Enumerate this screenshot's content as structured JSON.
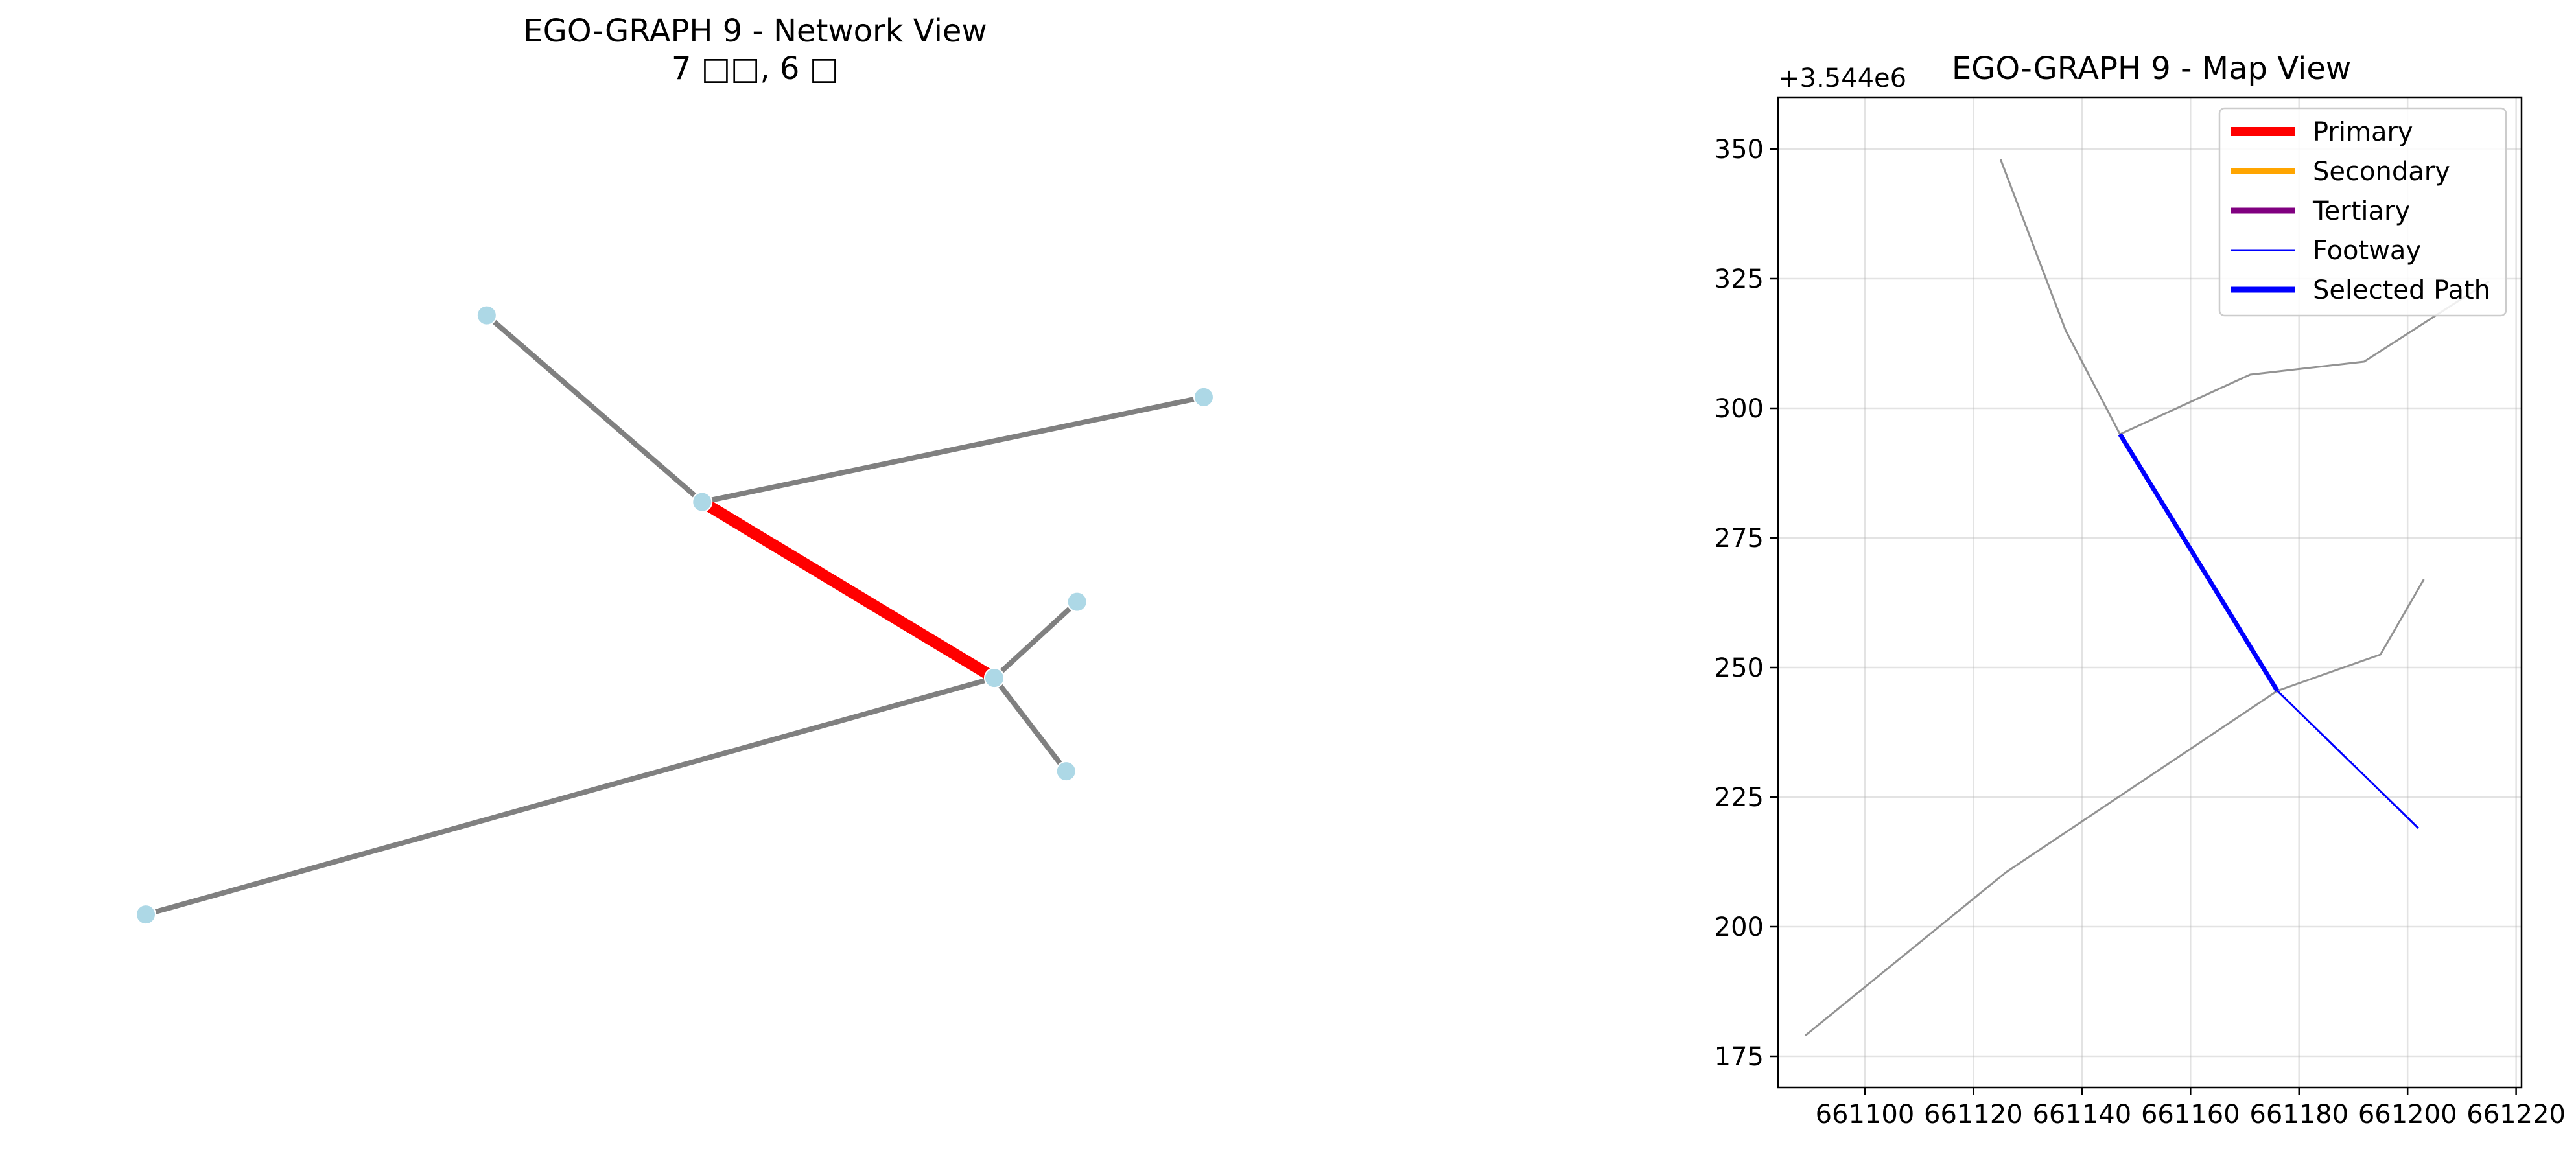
{
  "network_view": {
    "title_line1": "EGO-GRAPH 9 - Network View",
    "title_line2": "7 □□, 6 □",
    "chart_data": {
      "type": "network",
      "node_color": "#add8e6",
      "edge_color": "#808080",
      "highlight_color": "#ff0000",
      "nodes": [
        {
          "id": "n0",
          "x": 0.28,
          "y": 0.838
        },
        {
          "id": "n1",
          "x": 0.869,
          "y": 0.738
        },
        {
          "id": "n2",
          "x": 0.457,
          "y": 0.61
        },
        {
          "id": "n3",
          "x": 0.765,
          "y": 0.488
        },
        {
          "id": "n4",
          "x": 0.697,
          "y": 0.395
        },
        {
          "id": "n5",
          "x": 0.756,
          "y": 0.281
        },
        {
          "id": "n6",
          "x": 0.0,
          "y": 0.106
        }
      ],
      "edges": [
        {
          "from": "n0",
          "to": "n2",
          "highlight": false
        },
        {
          "from": "n2",
          "to": "n1",
          "highlight": false
        },
        {
          "from": "n2",
          "to": "n4",
          "highlight": true
        },
        {
          "from": "n4",
          "to": "n3",
          "highlight": false
        },
        {
          "from": "n4",
          "to": "n5",
          "highlight": false
        },
        {
          "from": "n4",
          "to": "n6",
          "highlight": false
        }
      ]
    }
  },
  "map_view": {
    "title": "EGO-GRAPH 9 - Map View",
    "y_offset_label": "+3.544e6",
    "chart_data": {
      "type": "line",
      "xlim": [
        661084,
        661221
      ],
      "ylim": [
        169,
        360
      ],
      "xticks": [
        661100,
        661120,
        661140,
        661160,
        661180,
        661200,
        661220
      ],
      "xtick_labels": [
        "661100",
        "661120",
        "661140",
        "661160",
        "661180",
        "661200",
        "661220"
      ],
      "yticks": [
        175,
        200,
        225,
        250,
        275,
        300,
        325,
        350
      ],
      "ytick_labels": [
        "175",
        "200",
        "225",
        "250",
        "275",
        "300",
        "325",
        "350"
      ],
      "grid": true,
      "legend_position": "upper right",
      "legend": [
        {
          "label": "Primary",
          "color": "#ff0000",
          "width": "thick"
        },
        {
          "label": "Secondary",
          "color": "#ffa500",
          "width": "medium"
        },
        {
          "label": "Tertiary",
          "color": "#800080",
          "width": "medium"
        },
        {
          "label": "Footway",
          "color": "#0000ff",
          "width": "thin"
        },
        {
          "label": "Selected Path",
          "color": "#0000ff",
          "width": "bold"
        }
      ],
      "series": [
        {
          "kind": "other",
          "color": "#808080",
          "points": [
            [
              661125,
              348
            ],
            [
              661137,
              315
            ],
            [
              661147,
              295
            ]
          ]
        },
        {
          "kind": "other",
          "color": "#808080",
          "points": [
            [
              661147,
              295
            ],
            [
              661171,
              306.5
            ],
            [
              661192,
              309
            ],
            [
              661215,
              324.5
            ]
          ]
        },
        {
          "kind": "other",
          "color": "#808080",
          "points": [
            [
              661089,
              179
            ],
            [
              661126,
              210.5
            ],
            [
              661176,
              245.5
            ]
          ]
        },
        {
          "kind": "other",
          "color": "#808080",
          "points": [
            [
              661176,
              245.5
            ],
            [
              661195,
              252.5
            ],
            [
              661203,
              267
            ]
          ]
        },
        {
          "kind": "footway",
          "color": "#0000ff",
          "points": [
            [
              661176,
              245.5
            ],
            [
              661202,
              219
            ]
          ]
        },
        {
          "kind": "selected",
          "color": "#0000ff",
          "points": [
            [
              661147,
              295
            ],
            [
              661176,
              245.5
            ]
          ]
        }
      ]
    }
  }
}
